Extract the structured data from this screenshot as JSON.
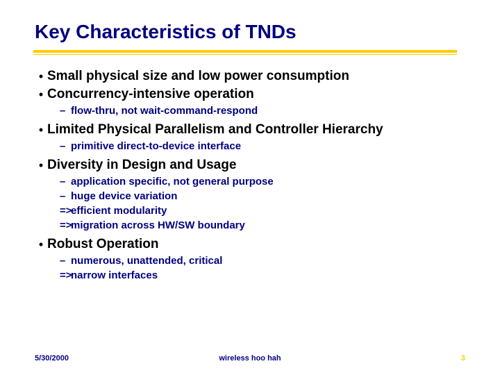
{
  "title": "Key Characteristics of TNDs",
  "colors": {
    "title": "#000080",
    "rule": "#ffcc00",
    "body": "#000000",
    "sub": "#000080",
    "pagenum": "#ffcc00",
    "bg": "#ffffff"
  },
  "fonts": {
    "title_size": 28,
    "body_size": 19,
    "sub_size": 15,
    "footer_size": 11
  },
  "bullets": [
    {
      "level": 1,
      "text": "Small physical size and low power consumption"
    },
    {
      "level": 1,
      "text": "Concurrency-intensive operation"
    },
    {
      "level": 2,
      "marker": "dash",
      "text": "flow-thru, not wait-command-respond"
    },
    {
      "level": 1,
      "text": "Limited Physical Parallelism and Controller Hierarchy"
    },
    {
      "level": 2,
      "marker": "dash",
      "text": "primitive direct-to-device interface"
    },
    {
      "level": 1,
      "text": "Diversity in Design and Usage"
    },
    {
      "level": 2,
      "marker": "dash",
      "text": "application specific, not general purpose"
    },
    {
      "level": 2,
      "marker": "dash",
      "text": "huge device variation"
    },
    {
      "level": 2,
      "marker": "arrow",
      "text": "efficient modularity"
    },
    {
      "level": 2,
      "marker": "arrow",
      "text": "migration across HW/SW boundary"
    },
    {
      "level": 1,
      "text": "Robust Operation"
    },
    {
      "level": 2,
      "marker": "dash",
      "text": "numerous, unattended, critical"
    },
    {
      "level": 2,
      "marker": "arrow",
      "text": "narrow interfaces"
    }
  ],
  "footer": {
    "date": "5/30/2000",
    "center": "wireless hoo hah",
    "pagenum": "3"
  }
}
